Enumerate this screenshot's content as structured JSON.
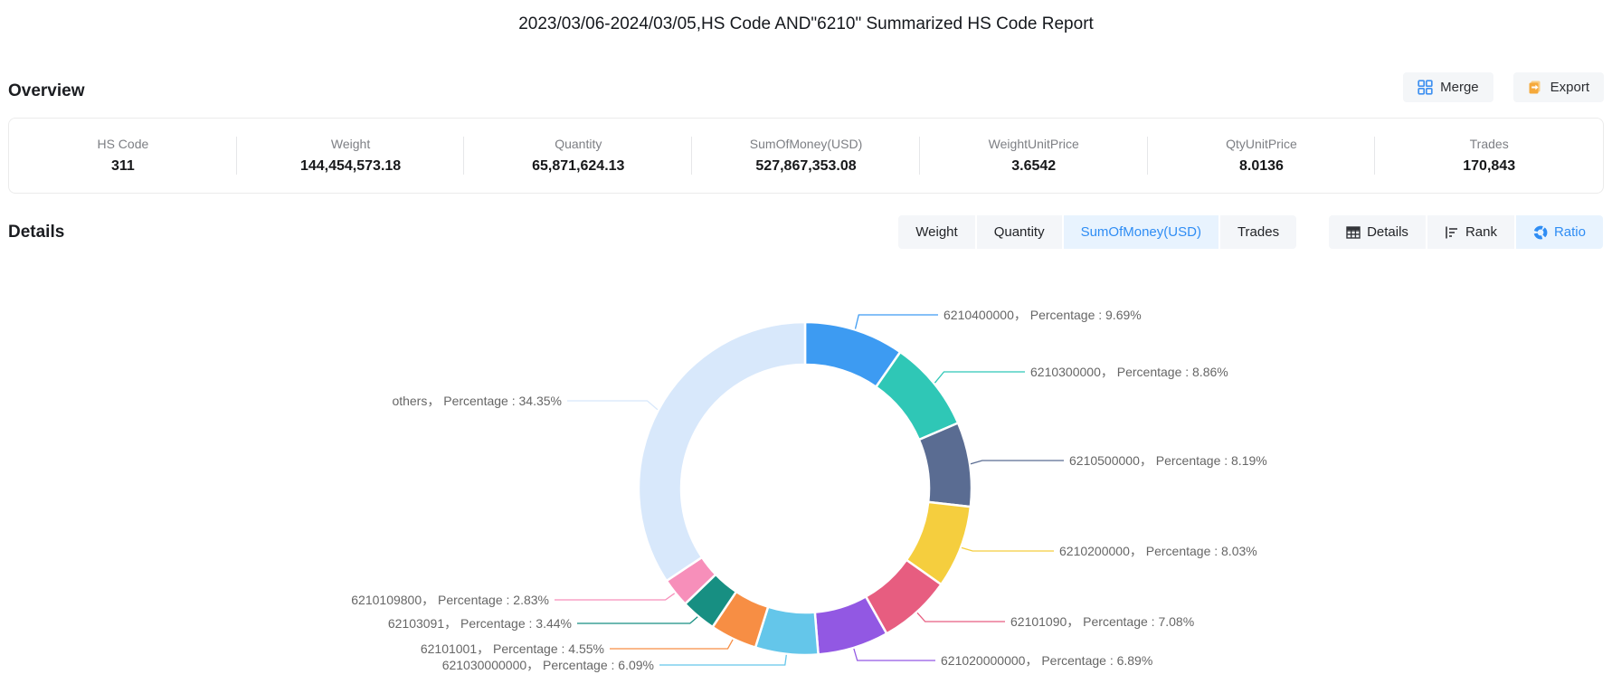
{
  "title": "2023/03/06-2024/03/05,HS Code AND\"6210\" Summarized HS Code Report",
  "overview": {
    "heading": "Overview",
    "buttons": {
      "merge": "Merge",
      "export": "Export"
    },
    "stats": [
      {
        "label": "HS Code",
        "value": "311"
      },
      {
        "label": "Weight",
        "value": "144,454,573.18"
      },
      {
        "label": "Quantity",
        "value": "65,871,624.13"
      },
      {
        "label": "SumOfMoney(USD)",
        "value": "527,867,353.08"
      },
      {
        "label": "WeightUnitPrice",
        "value": "3.6542"
      },
      {
        "label": "QtyUnitPrice",
        "value": "8.0136"
      },
      {
        "label": "Trades",
        "value": "170,843"
      }
    ]
  },
  "details": {
    "heading": "Details",
    "metric_tabs": [
      "Weight",
      "Quantity",
      "SumOfMoney(USD)",
      "Trades"
    ],
    "selected_metric": "SumOfMoney(USD)",
    "view_tabs": [
      "Details",
      "Rank",
      "Ratio"
    ],
    "selected_view": "Ratio"
  },
  "chart_data": {
    "type": "pie",
    "donut": true,
    "metric": "SumOfMoney(USD)",
    "categories": [
      "6210400000",
      "6210300000",
      "6210500000",
      "6210200000",
      "62101090",
      "621020000000",
      "621030000000",
      "62101001",
      "62103091",
      "6210109800",
      "others"
    ],
    "values": [
      9.69,
      8.86,
      8.19,
      8.03,
      7.08,
      6.89,
      6.09,
      4.55,
      3.44,
      2.83,
      34.35
    ],
    "labels": [
      "6210400000， Percentage : 9.69%",
      "6210300000， Percentage : 8.86%",
      "6210500000， Percentage : 8.19%",
      "6210200000， Percentage : 8.03%",
      "62101090， Percentage : 7.08%",
      "621020000000， Percentage : 6.89%",
      "621030000000， Percentage : 6.09%",
      "62101001， Percentage : 4.55%",
      "62103091， Percentage : 3.44%",
      "6210109800， Percentage : 2.83%",
      "others， Percentage : 34.35%"
    ],
    "colors": [
      "#3d9bf2",
      "#2fc7b6",
      "#5a6c92",
      "#f5ce3e",
      "#e75d80",
      "#9258e3",
      "#64c6ea",
      "#f78e44",
      "#178f82",
      "#f78fba",
      "#d8e8fb"
    ],
    "legend_position": "none",
    "label_text_color": "#666666"
  },
  "ui_colors": {
    "accent_blue": "#2f8df4",
    "tab_selected_bg": "#e8f3fe",
    "tab_bg": "#f4f6f9",
    "merge_icon_blue": "#3e90f0",
    "export_icon_orange": "#f5a93b"
  }
}
